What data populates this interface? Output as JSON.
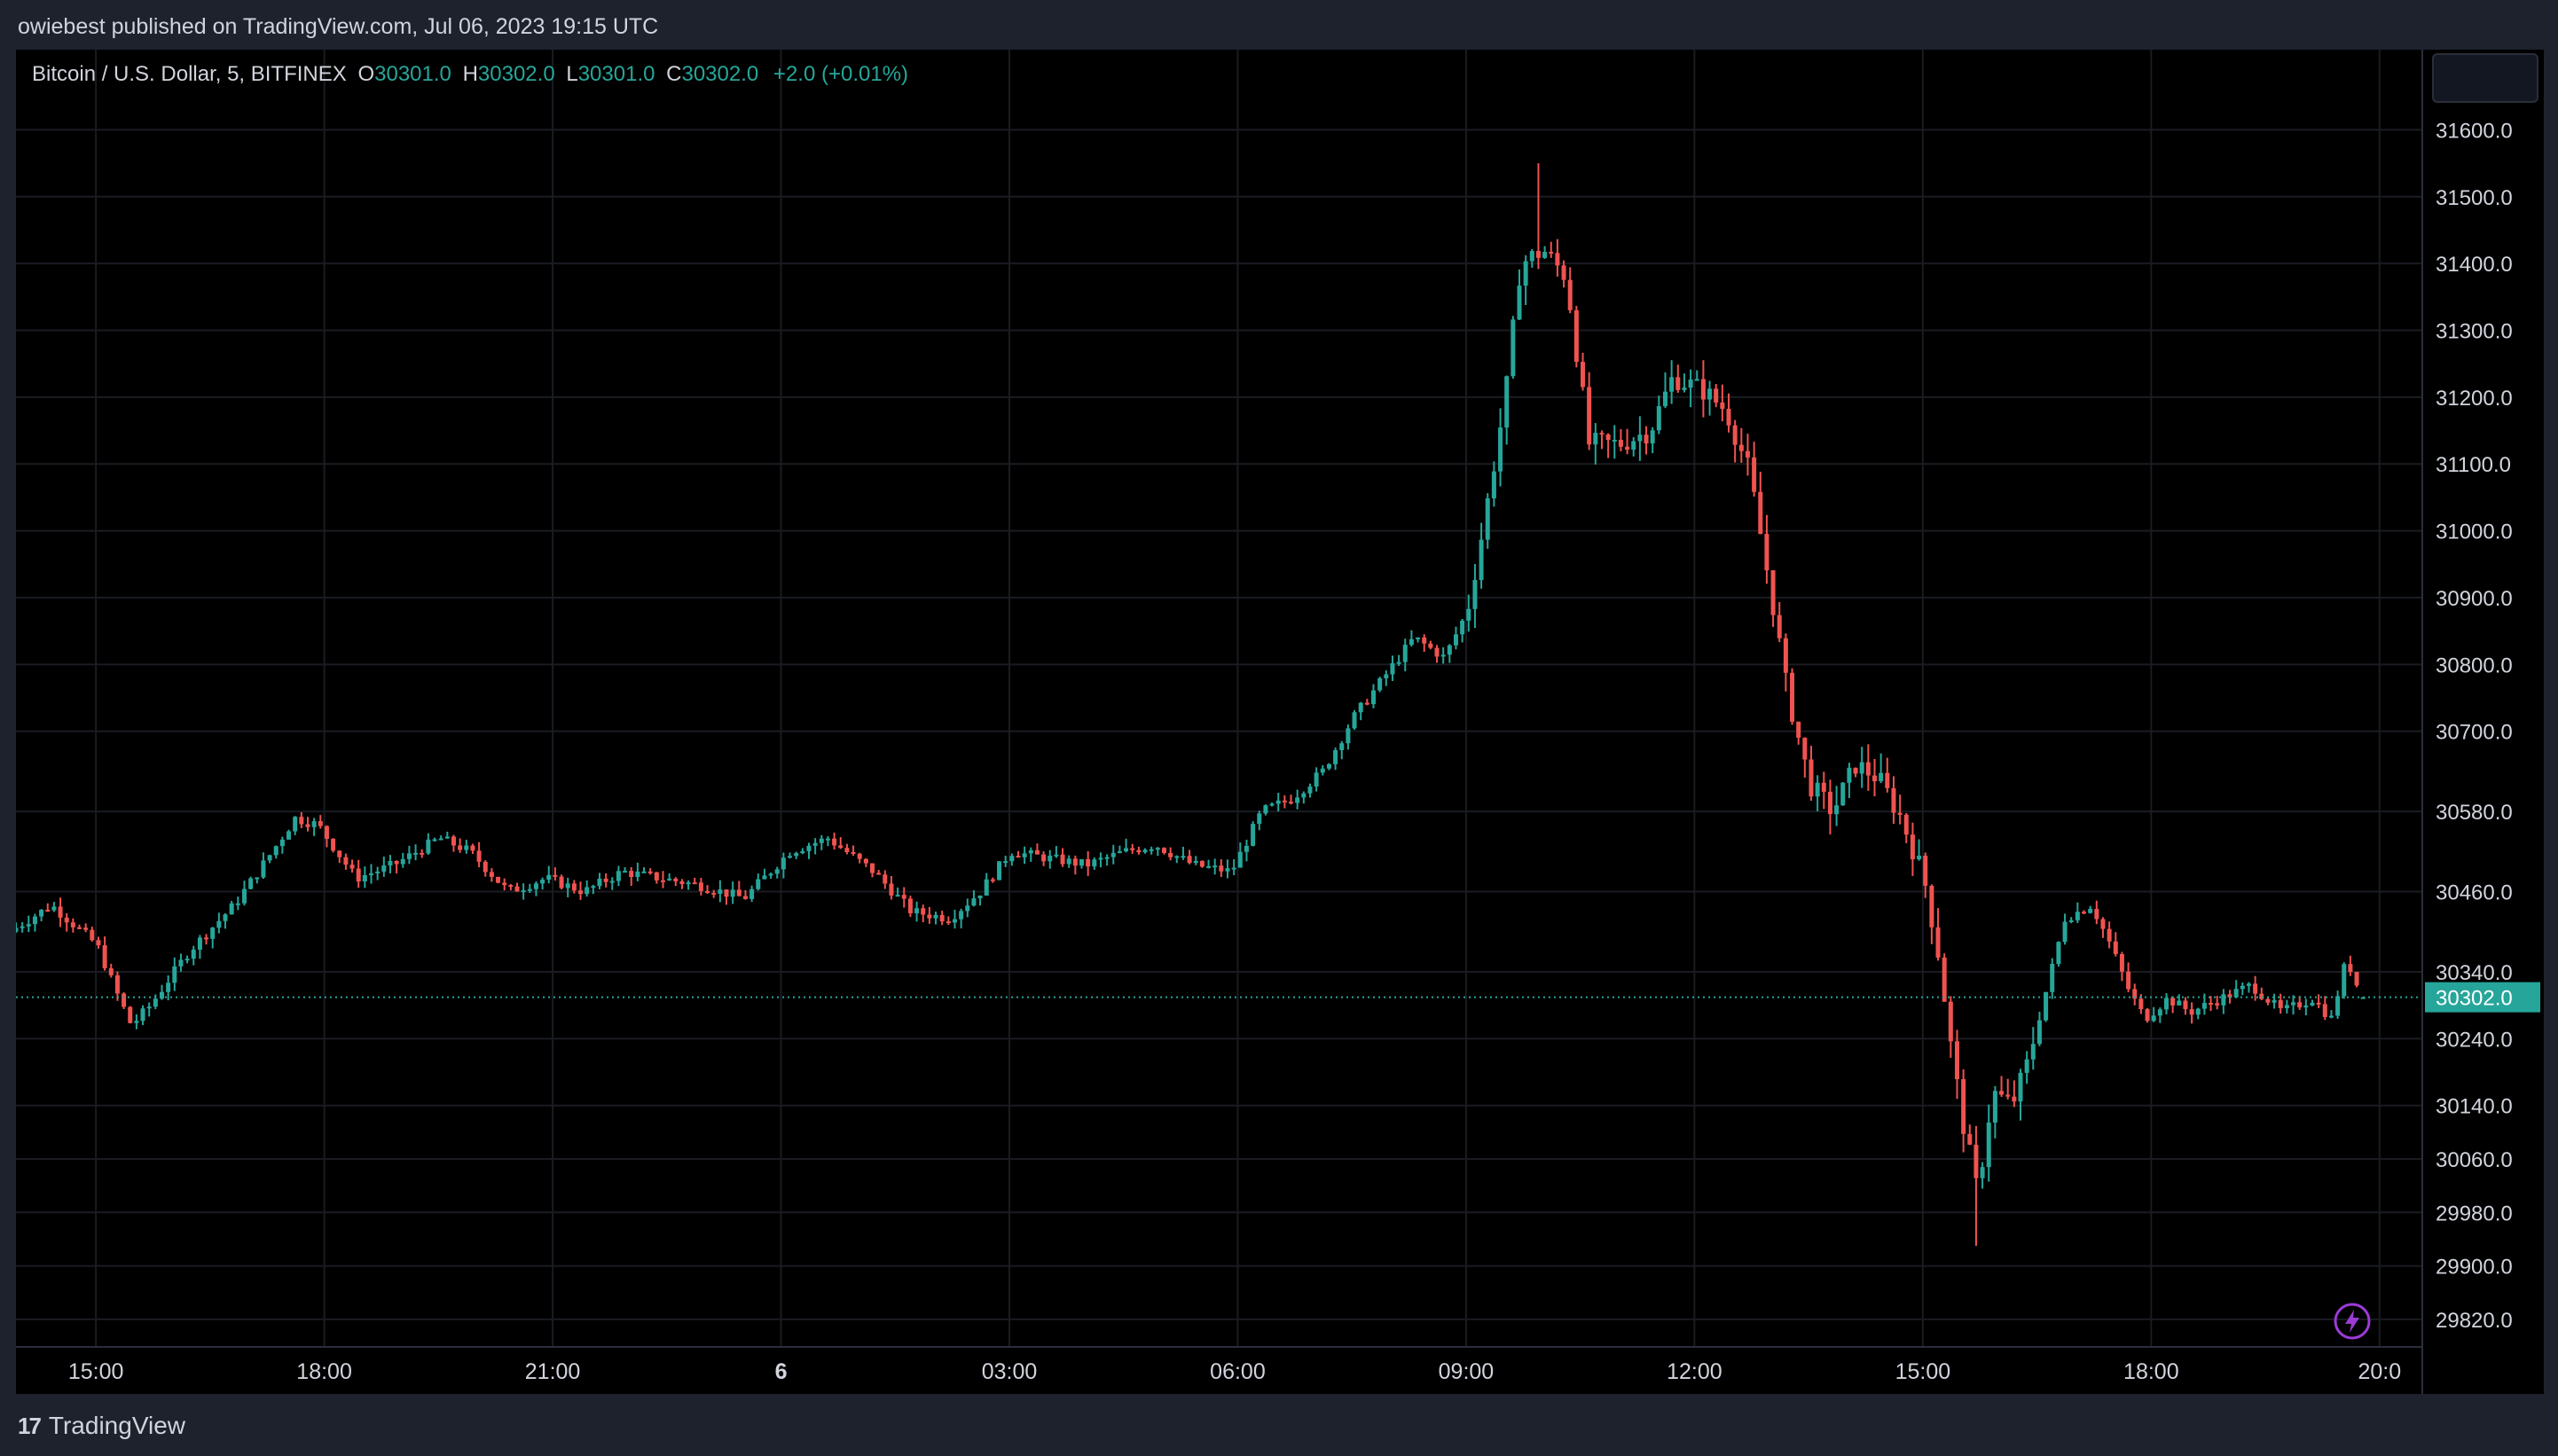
{
  "header": {
    "published_text": "owiebest published on TradingView.com, Jul 06, 2023 19:15 UTC"
  },
  "legend": {
    "symbol": "Bitcoin / U.S. Dollar, 5, BITFINEX",
    "open_label": "O",
    "open": "30301.0",
    "high_label": "H",
    "high": "30302.0",
    "low_label": "L",
    "low": "30301.0",
    "close_label": "C",
    "close": "30302.0",
    "change": "+2.0 (+0.01%)"
  },
  "footer": {
    "brand": "TradingView",
    "logo_mark": "17"
  },
  "colors": {
    "up": "#26a69a",
    "down": "#ef5350",
    "background": "#000000",
    "panel": "#1e222d",
    "grid": "#1a1c22",
    "text": "#d1d4dc",
    "lightning": "#9c3bd6"
  },
  "icons": {
    "lightning": "lightning-icon"
  },
  "chart_data": {
    "type": "candlestick",
    "symbol": "BTCUSD",
    "interval_minutes": 5,
    "ylim": [
      29780,
      31720
    ],
    "price_tick_labels": [
      "31600.0",
      "31500.0",
      "31400.0",
      "31300.0",
      "31200.0",
      "31100.0",
      "31000.0",
      "30900.0",
      "30800.0",
      "30700.0",
      "30580.0",
      "30460.0",
      "30340.0",
      "30240.0",
      "30140.0",
      "30060.0",
      "29980.0",
      "29900.0",
      "29820.0"
    ],
    "last_price": "30302.0",
    "time_tick_labels": [
      "15:00",
      "18:00",
      "21:00",
      "6",
      "03:00",
      "06:00",
      "09:00",
      "12:00",
      "15:00",
      "18:00",
      "20:0"
    ],
    "time_tick_hours": [
      15,
      18,
      21,
      24,
      27,
      30,
      33,
      36,
      39,
      42,
      45
    ],
    "time_start_hour": 13.95,
    "time_end_hour": 45.17,
    "key_points": [
      [
        13.95,
        30400
      ],
      [
        14.5,
        30440
      ],
      [
        15.1,
        30380
      ],
      [
        15.35,
        30310
      ],
      [
        15.55,
        30260
      ],
      [
        15.8,
        30290
      ],
      [
        16.3,
        30370
      ],
      [
        16.9,
        30440
      ],
      [
        17.4,
        30520
      ],
      [
        17.7,
        30570
      ],
      [
        18.0,
        30560
      ],
      [
        18.5,
        30480
      ],
      [
        19.0,
        30500
      ],
      [
        19.6,
        30540
      ],
      [
        20.0,
        30520
      ],
      [
        20.5,
        30460
      ],
      [
        21.0,
        30480
      ],
      [
        21.5,
        30460
      ],
      [
        22.0,
        30490
      ],
      [
        22.5,
        30480
      ],
      [
        23.0,
        30470
      ],
      [
        23.6,
        30450
      ],
      [
        24.2,
        30520
      ],
      [
        24.7,
        30540
      ],
      [
        25.3,
        30490
      ],
      [
        25.8,
        30430
      ],
      [
        26.3,
        30420
      ],
      [
        26.7,
        30460
      ],
      [
        27.1,
        30520
      ],
      [
        27.6,
        30510
      ],
      [
        28.1,
        30500
      ],
      [
        28.6,
        30520
      ],
      [
        29.0,
        30530
      ],
      [
        29.5,
        30500
      ],
      [
        30.0,
        30490
      ],
      [
        30.4,
        30580
      ],
      [
        30.8,
        30600
      ],
      [
        31.2,
        30640
      ],
      [
        31.6,
        30720
      ],
      [
        32.0,
        30780
      ],
      [
        32.4,
        30840
      ],
      [
        32.8,
        30810
      ],
      [
        33.1,
        30880
      ],
      [
        33.3,
        31000
      ],
      [
        33.6,
        31200
      ],
      [
        33.8,
        31400
      ],
      [
        34.1,
        31420
      ],
      [
        34.4,
        31380
      ],
      [
        34.7,
        31130
      ],
      [
        35.1,
        31130
      ],
      [
        35.5,
        31150
      ],
      [
        35.8,
        31230
      ],
      [
        36.2,
        31210
      ],
      [
        36.5,
        31180
      ],
      [
        36.8,
        31090
      ],
      [
        37.1,
        30900
      ],
      [
        37.3,
        30760
      ],
      [
        37.6,
        30620
      ],
      [
        37.9,
        30580
      ],
      [
        38.2,
        30650
      ],
      [
        38.5,
        30630
      ],
      [
        38.8,
        30570
      ],
      [
        39.1,
        30480
      ],
      [
        39.3,
        30360
      ],
      [
        39.45,
        30230
      ],
      [
        39.6,
        30120
      ],
      [
        39.8,
        30010
      ],
      [
        40.0,
        30160
      ],
      [
        40.25,
        30140
      ],
      [
        40.45,
        30200
      ],
      [
        40.7,
        30310
      ],
      [
        40.95,
        30420
      ],
      [
        41.3,
        30440
      ],
      [
        41.55,
        30380
      ],
      [
        41.8,
        30310
      ],
      [
        42.0,
        30270
      ],
      [
        42.3,
        30300
      ],
      [
        42.6,
        30280
      ],
      [
        43.0,
        30300
      ],
      [
        43.4,
        30320
      ],
      [
        43.8,
        30280
      ],
      [
        44.2,
        30300
      ],
      [
        44.45,
        30270
      ],
      [
        44.65,
        30360
      ],
      [
        44.85,
        30302
      ]
    ],
    "price_min_low": 29930,
    "price_max_high": 31550
  }
}
